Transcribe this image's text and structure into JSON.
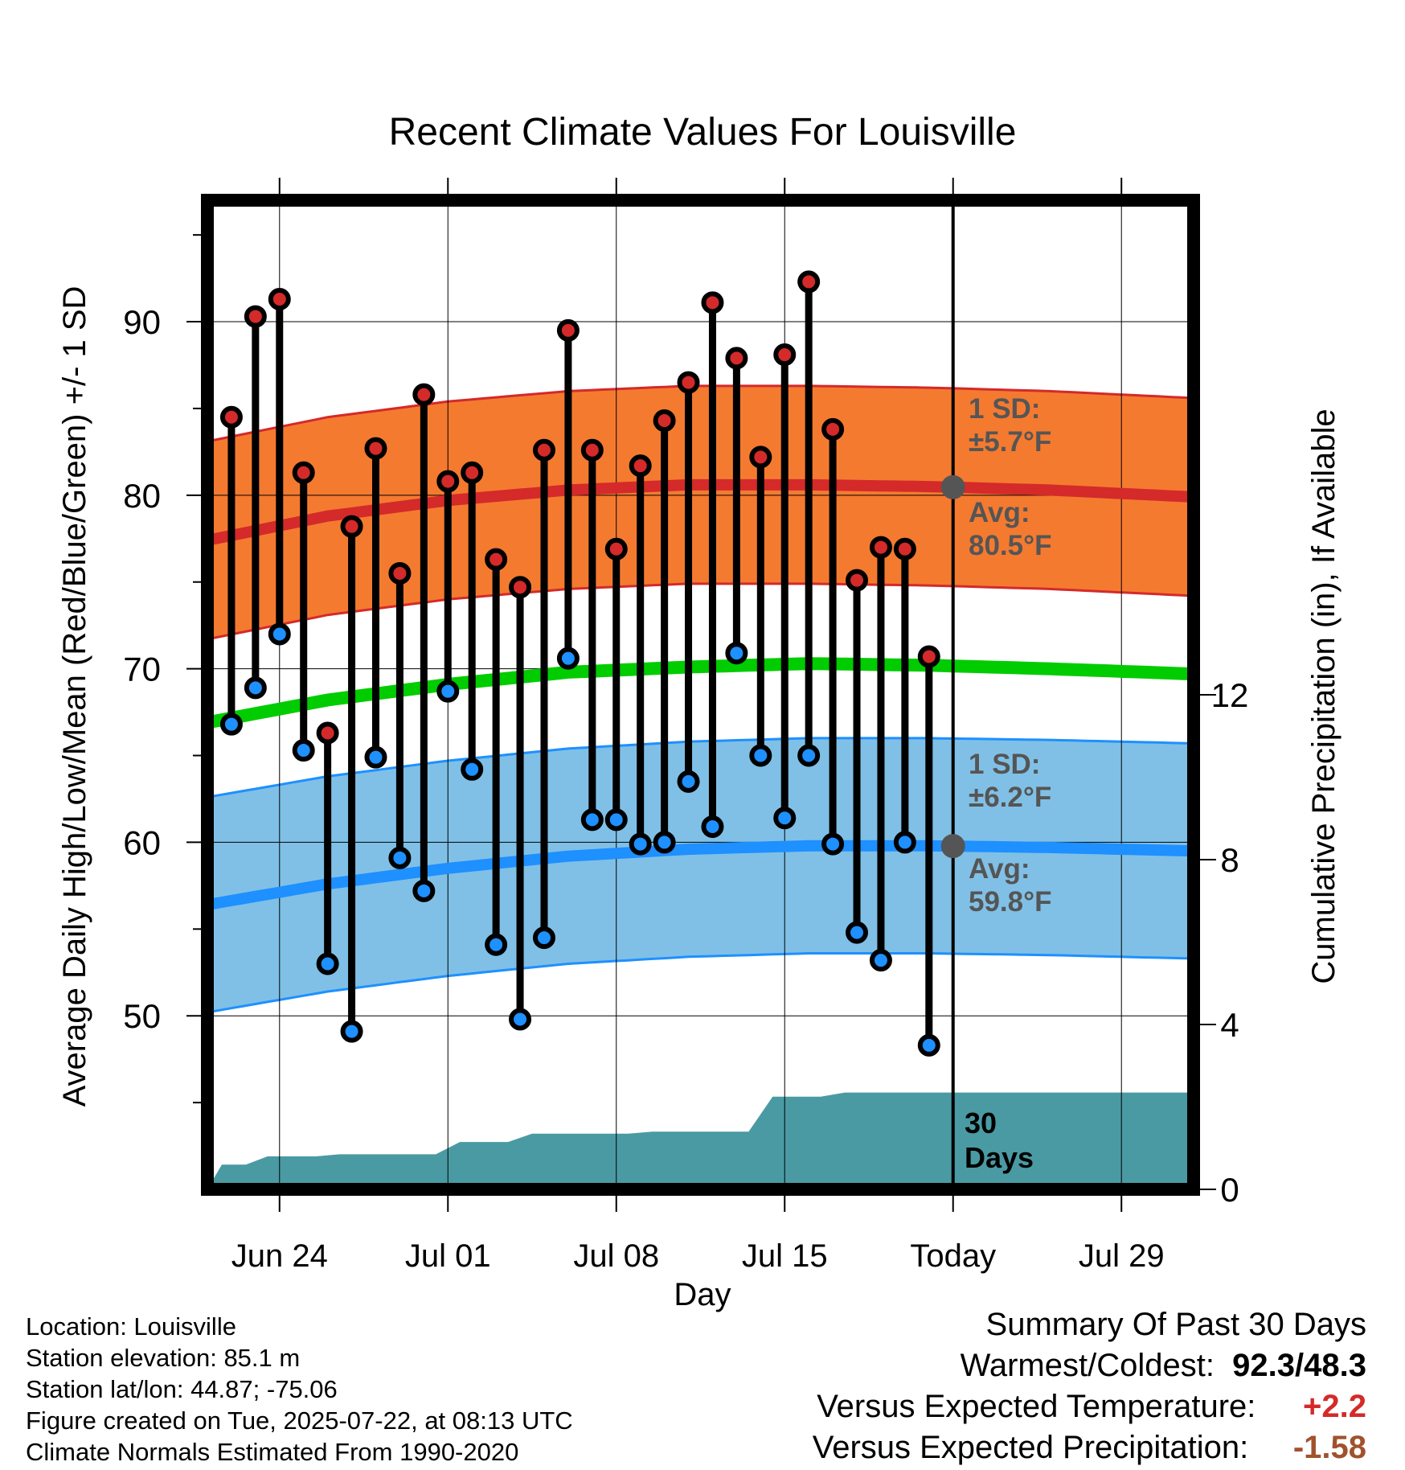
{
  "chart_data": {
    "type": "line",
    "title": "Recent Climate Values For Louisville",
    "xlabel": "Day",
    "ylabel": "Average Daily High/Low/Mean (Red/Blue/Green) +/- 1 SD",
    "y2label": "Cumulative Precipitation (in), If Available",
    "x_tick_labels": [
      "Jun 24",
      "Jul 01",
      "Jul 08",
      "Jul 15",
      "Today",
      "Jul 29"
    ],
    "x_tick_days": [
      3,
      10,
      17,
      24,
      31,
      38
    ],
    "y_ticks": [
      50,
      60,
      70,
      80,
      90
    ],
    "y2_ticks": [
      0,
      4,
      8,
      12
    ],
    "ylim": [
      40,
      97
    ],
    "y2lim": [
      0,
      24
    ],
    "xlim": [
      0,
      41
    ],
    "today_day": 31,
    "days": [
      1,
      2,
      3,
      4,
      5,
      6,
      7,
      8,
      9,
      10,
      11,
      12,
      13,
      14,
      15,
      16,
      17,
      18,
      19,
      20,
      21,
      22,
      23,
      24,
      25,
      26,
      27,
      28,
      29,
      30
    ],
    "highs": [
      84.5,
      90.3,
      91.3,
      81.3,
      66.3,
      78.2,
      82.7,
      75.5,
      85.8,
      80.8,
      81.3,
      76.3,
      74.7,
      82.6,
      89.5,
      82.6,
      76.9,
      81.7,
      84.3,
      86.5,
      91.1,
      87.9,
      82.2,
      88.1,
      92.3,
      83.8,
      75.1,
      77.0,
      76.9,
      70.7
    ],
    "lows": [
      66.8,
      68.9,
      72.0,
      65.3,
      53.0,
      49.1,
      64.9,
      59.1,
      57.2,
      68.7,
      64.2,
      54.1,
      49.8,
      54.5,
      70.6,
      61.3,
      61.3,
      59.9,
      60.0,
      63.5,
      60.9,
      70.9,
      65.0,
      61.4,
      65.0,
      59.9,
      54.8,
      53.2,
      60.0,
      48.3
    ],
    "normal_days": [
      0,
      5,
      10,
      15,
      20,
      25,
      30,
      35,
      41
    ],
    "normal_high": [
      77.4,
      78.8,
      79.7,
      80.3,
      80.6,
      80.6,
      80.5,
      80.3,
      79.9
    ],
    "normal_high_sd": 5.7,
    "normal_low": [
      56.4,
      57.6,
      58.5,
      59.2,
      59.6,
      59.8,
      59.8,
      59.7,
      59.5
    ],
    "normal_low_sd": 6.2,
    "normal_mean": [
      66.9,
      68.2,
      69.1,
      69.8,
      70.1,
      70.3,
      70.2,
      70.0,
      69.7
    ],
    "precip_days": [
      0,
      0.6,
      1.6,
      2.5,
      3.5,
      4.5,
      5.5,
      6.5,
      7.5,
      8.5,
      9.5,
      10.5,
      11.5,
      12.5,
      13.5,
      14.5,
      15.5,
      16.5,
      17.5,
      18.5,
      19.5,
      20.5,
      21.5,
      22.5,
      23.5,
      24.5,
      25.5,
      26.5,
      27.5,
      28.5,
      29.5,
      30.5,
      41
    ],
    "precip_cum": [
      0,
      0.6,
      0.6,
      0.8,
      0.8,
      0.8,
      0.85,
      0.85,
      0.85,
      0.85,
      0.85,
      1.15,
      1.15,
      1.15,
      1.35,
      1.35,
      1.35,
      1.35,
      1.35,
      1.4,
      1.4,
      1.4,
      1.4,
      1.4,
      2.25,
      2.25,
      2.25,
      2.35,
      2.35,
      2.35,
      2.35,
      2.35,
      2.35
    ],
    "annotations": {
      "high_sd": "1 SD:",
      "high_sd_val": "±5.7°F",
      "high_avg": "Avg:",
      "high_avg_val": "80.5°F",
      "low_sd": "1 SD:",
      "low_sd_val": "±6.2°F",
      "low_avg": "Avg:",
      "low_avg_val": "59.8°F",
      "days_line1": "30",
      "days_line2": "Days"
    },
    "colors": {
      "high_band": "#f47a30",
      "high_line": "#d42a2a",
      "low_band": "#80c0e6",
      "low_line": "#1e90ff",
      "mean_line": "#00cc00",
      "precip": "#4a9aa3",
      "annotation": "#555555"
    }
  },
  "footer": {
    "location": "Location: Louisville",
    "elevation": "Station elevation: 85.1 m",
    "latlon": "Station lat/lon: 44.87; -75.06",
    "created": "Figure created on Tue, 2025-07-22, at 08:13 UTC",
    "normals": "Climate Normals Estimated From 1990-2020"
  },
  "summary": {
    "title": "Summary Of Past 30 Days",
    "warm_label": "Warmest/Coldest:",
    "warm_value": "92.3/48.3",
    "temp_label": "Versus Expected Temperature:",
    "temp_value": "+2.2",
    "temp_color": "#d42a2a",
    "precip_label": "Versus Expected Precipitation:",
    "precip_value": "-1.58",
    "precip_color": "#a0522d"
  }
}
